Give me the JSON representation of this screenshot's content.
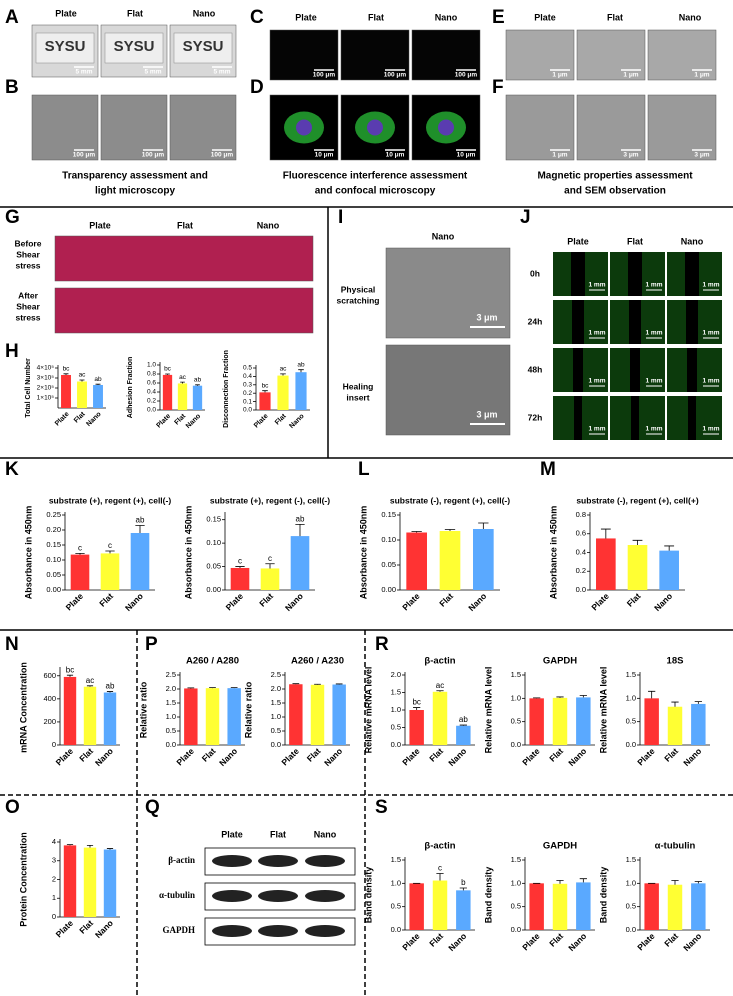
{
  "figure": {
    "panel_letters": [
      "A",
      "B",
      "C",
      "D",
      "E",
      "F",
      "G",
      "H",
      "I",
      "J",
      "K",
      "L",
      "M",
      "N",
      "O",
      "P",
      "Q",
      "R",
      "S"
    ],
    "group_labels": [
      "Plate",
      "Flat",
      "Nano"
    ],
    "a": {
      "sign": "SYSU",
      "scale": "5 mm"
    },
    "b": {
      "scale": "100 μm",
      "caption": [
        "Transparency  assessment and",
        "light microscopy"
      ]
    },
    "c": {
      "scale": "100 μm"
    },
    "d": {
      "scale": "10 μm",
      "caption": [
        "Fluorescence interference assessment",
        "and confocal microscopy"
      ]
    },
    "e": {
      "scale": "1 μm"
    },
    "f": {
      "scales": [
        "1 μm",
        "3 μm",
        "3 μm"
      ],
      "caption": [
        "Magnetic properties assessment",
        "and SEM observation"
      ]
    },
    "g": {
      "rows": [
        [
          "Before",
          "Shear",
          "stress"
        ],
        [
          "After",
          "Shear",
          "stress"
        ]
      ]
    },
    "i": {
      "rows": [
        [
          "Physical",
          "scratching"
        ],
        [
          "Healing",
          "insert"
        ]
      ],
      "scale": "3 μm"
    },
    "j": {
      "rows": [
        "0h",
        "24h",
        "48h",
        "72h"
      ],
      "scale": "1 mm"
    },
    "q": {
      "bands": [
        "β-actin",
        "α-tubulin",
        "GAPDH"
      ]
    }
  },
  "chart_data": [
    {
      "type": "bar",
      "y_label": "Total Cell Number",
      "categories": [
        "Plate",
        "Flat",
        "Nano"
      ],
      "values": [
        330000,
        265000,
        230000
      ],
      "errors": [
        12000,
        15000,
        8000
      ],
      "colors": [
        "#ff3333",
        "#ffff33",
        "#5aa9ff"
      ],
      "annotations": [
        "bc",
        "ac",
        "ab"
      ],
      "ylim": [
        0,
        400000
      ],
      "yticks": [
        {
          "value": 100000,
          "label": "1×10⁵"
        },
        {
          "value": 200000,
          "label": "2×10⁵"
        },
        {
          "value": 300000,
          "label": "3×10⁵"
        },
        {
          "value": 400000,
          "label": "4×10⁵"
        }
      ]
    },
    {
      "type": "bar",
      "y_label": "Adhesion Fraction",
      "categories": [
        "Plate",
        "Flat",
        "Nano"
      ],
      "values": [
        0.78,
        0.59,
        0.54
      ],
      "errors": [
        0.02,
        0.03,
        0.02
      ],
      "colors": [
        "#ff3333",
        "#ffff33",
        "#5aa9ff"
      ],
      "annotations": [
        "bc",
        "ac",
        "ab"
      ],
      "ylim": [
        0,
        1.0
      ],
      "yticks": [
        {
          "value": 0,
          "label": "0.0"
        },
        0.2,
        0.4,
        0.6,
        0.8,
        {
          "value": 1,
          "label": "1.0"
        }
      ]
    },
    {
      "type": "bar",
      "y_label": "Disconnection Fraction",
      "categories": [
        "Plate",
        "Flat",
        "Nano"
      ],
      "values": [
        0.21,
        0.41,
        0.45
      ],
      "errors": [
        0.02,
        0.02,
        0.03
      ],
      "colors": [
        "#ff3333",
        "#ffff33",
        "#5aa9ff"
      ],
      "annotations": [
        "bc",
        "ac",
        "ab"
      ],
      "ylim": [
        0,
        0.5
      ],
      "yticks": [
        {
          "value": 0,
          "label": "0.0"
        },
        0.1,
        0.2,
        0.3,
        0.4,
        0.5
      ]
    },
    {
      "type": "bar",
      "title": "substrate (+), regent (+), cell(-)",
      "y_label": "Absorbance in 450nm",
      "categories": [
        "Plate",
        "Flat",
        "Nano"
      ],
      "values": [
        0.118,
        0.122,
        0.19
      ],
      "errors": [
        0.004,
        0.008,
        0.025
      ],
      "colors": [
        "#ff3333",
        "#ffff33",
        "#5aa9ff"
      ],
      "annotations": [
        "c",
        "c",
        "ab"
      ],
      "ylim": [
        0,
        0.25
      ],
      "yticks": [
        {
          "value": 0,
          "label": "0.00"
        },
        0.05,
        {
          "value": 0.1,
          "label": "0.10"
        },
        0.15,
        {
          "value": 0.2,
          "label": "0.20"
        },
        0.25
      ]
    },
    {
      "type": "bar",
      "title": "substrate (+), regent (-), cell(-)",
      "y_label": "Absorbance in 450nm",
      "categories": [
        "Plate",
        "Flat",
        "Nano"
      ],
      "values": [
        0.047,
        0.046,
        0.115
      ],
      "errors": [
        0.003,
        0.01,
        0.025
      ],
      "colors": [
        "#ff3333",
        "#ffff33",
        "#5aa9ff"
      ],
      "annotations": [
        "c",
        "c",
        "ab"
      ],
      "ylim": [
        0,
        0.16
      ],
      "yticks": [
        {
          "value": 0,
          "label": "0.00"
        },
        0.05,
        {
          "value": 0.1,
          "label": "0.10"
        },
        0.15
      ]
    },
    {
      "type": "bar",
      "title": "substrate (-), regent (+), cell(-)",
      "y_label": "Absorbance in 450nm",
      "categories": [
        "Plate",
        "Flat",
        "Nano"
      ],
      "values": [
        0.115,
        0.118,
        0.122
      ],
      "errors": [
        0.002,
        0.003,
        0.012
      ],
      "colors": [
        "#ff3333",
        "#ffff33",
        "#5aa9ff"
      ],
      "ylim": [
        0,
        0.15
      ],
      "yticks": [
        {
          "value": 0,
          "label": "0.00"
        },
        0.05,
        {
          "value": 0.1,
          "label": "0.10"
        },
        0.15
      ]
    },
    {
      "type": "bar",
      "title": "substrate (-), regent (+), cell(+)",
      "y_label": "Absorbance in 450nm",
      "categories": [
        "Plate",
        "Flat",
        "Nano"
      ],
      "values": [
        0.55,
        0.48,
        0.42
      ],
      "errors": [
        0.1,
        0.05,
        0.05
      ],
      "colors": [
        "#ff3333",
        "#ffff33",
        "#5aa9ff"
      ],
      "ylim": [
        0,
        0.8
      ],
      "yticks": [
        {
          "value": 0,
          "label": "0.0"
        },
        0.2,
        0.4,
        0.6,
        0.8
      ]
    },
    {
      "type": "bar",
      "y_label": "mRNA Concentration",
      "categories": [
        "Plate",
        "Flat",
        "Nano"
      ],
      "values": [
        590,
        505,
        455
      ],
      "errors": [
        15,
        8,
        8
      ],
      "colors": [
        "#ff3333",
        "#ffff33",
        "#5aa9ff"
      ],
      "annotations": [
        "bc",
        "ac",
        "ab"
      ],
      "ylim": [
        0,
        650
      ],
      "yticks": [
        0,
        200,
        400,
        600
      ]
    },
    {
      "type": "bar",
      "title": "A260 / A280",
      "y_label": "Relative ratio",
      "categories": [
        "Plate",
        "Flat",
        "Nano"
      ],
      "values": [
        2.02,
        2.03,
        2.03
      ],
      "errors": [
        0.02,
        0.02,
        0.02
      ],
      "colors": [
        "#ff3333",
        "#ffff33",
        "#5aa9ff"
      ],
      "ylim": [
        0,
        2.5
      ],
      "yticks": [
        {
          "value": 0,
          "label": "0.0"
        },
        0.5,
        {
          "value": 1,
          "label": "1.0"
        },
        1.5,
        {
          "value": 2,
          "label": "2.0"
        },
        2.5
      ]
    },
    {
      "type": "bar",
      "title": "A260 / A230",
      "y_label": "Relative ratio",
      "categories": [
        "Plate",
        "Flat",
        "Nano"
      ],
      "values": [
        2.17,
        2.15,
        2.16
      ],
      "errors": [
        0.02,
        0.02,
        0.02
      ],
      "colors": [
        "#ff3333",
        "#ffff33",
        "#5aa9ff"
      ],
      "ylim": [
        0,
        2.5
      ],
      "yticks": [
        {
          "value": 0,
          "label": "0.0"
        },
        0.5,
        {
          "value": 1,
          "label": "1.0"
        },
        1.5,
        {
          "value": 2,
          "label": "2.0"
        },
        2.5
      ]
    },
    {
      "type": "bar",
      "title": "β-actin",
      "y_label": "Relative mRNA level",
      "categories": [
        "Plate",
        "Flat",
        "Nano"
      ],
      "values": [
        1.0,
        1.52,
        0.55
      ],
      "errors": [
        0.07,
        0.03,
        0.02
      ],
      "colors": [
        "#ff3333",
        "#ffff33",
        "#5aa9ff"
      ],
      "annotations": [
        "bc",
        "ac",
        "ab"
      ],
      "ylim": [
        0,
        2.0
      ],
      "yticks": [
        {
          "value": 0,
          "label": "0.0"
        },
        0.5,
        {
          "value": 1,
          "label": "1.0"
        },
        1.5,
        {
          "value": 2,
          "label": "2.0"
        }
      ]
    },
    {
      "type": "bar",
      "title": "GAPDH",
      "y_label": "Relative mRNA level",
      "categories": [
        "Plate",
        "Flat",
        "Nano"
      ],
      "values": [
        1.0,
        1.01,
        1.02
      ],
      "errors": [
        0.01,
        0.02,
        0.04
      ],
      "colors": [
        "#ff3333",
        "#ffff33",
        "#5aa9ff"
      ],
      "ylim": [
        0,
        1.5
      ],
      "yticks": [
        {
          "value": 0,
          "label": "0.0"
        },
        0.5,
        {
          "value": 1,
          "label": "1.0"
        },
        1.5
      ]
    },
    {
      "type": "bar",
      "title": "18S",
      "y_label": "Relative mRNA level",
      "categories": [
        "Plate",
        "Flat",
        "Nano"
      ],
      "values": [
        1.0,
        0.82,
        0.88
      ],
      "errors": [
        0.15,
        0.1,
        0.05
      ],
      "colors": [
        "#ff3333",
        "#ffff33",
        "#5aa9ff"
      ],
      "ylim": [
        0,
        1.5
      ],
      "yticks": [
        {
          "value": 0,
          "label": "0.0"
        },
        0.5,
        {
          "value": 1,
          "label": "1.0"
        },
        1.5
      ]
    },
    {
      "type": "bar",
      "y_label": "Protein Concentration",
      "categories": [
        "Plate",
        "Flat",
        "Nano"
      ],
      "values": [
        3.82,
        3.7,
        3.6
      ],
      "errors": [
        0.04,
        0.12,
        0.05
      ],
      "colors": [
        "#ff3333",
        "#ffff33",
        "#5aa9ff"
      ],
      "ylim": [
        0,
        4
      ],
      "yticks": [
        0,
        1,
        2,
        3,
        4
      ]
    },
    {
      "type": "bar",
      "title": "β-actin",
      "y_label": "Band density",
      "categories": [
        "Plate",
        "Flat",
        "Nano"
      ],
      "values": [
        1.0,
        1.06,
        0.85
      ],
      "errors": [
        0,
        0.15,
        0.05
      ],
      "colors": [
        "#ff3333",
        "#ffff33",
        "#5aa9ff"
      ],
      "annotations": [
        null,
        "c",
        "b"
      ],
      "ylim": [
        0,
        1.5
      ],
      "yticks": [
        {
          "value": 0,
          "label": "0.0"
        },
        0.5,
        {
          "value": 1,
          "label": "1.0"
        },
        1.5
      ]
    },
    {
      "type": "bar",
      "title": "GAPDH",
      "y_label": "Band density",
      "categories": [
        "Plate",
        "Flat",
        "Nano"
      ],
      "values": [
        1.0,
        0.99,
        1.02
      ],
      "errors": [
        0,
        0.07,
        0.08
      ],
      "colors": [
        "#ff3333",
        "#ffff33",
        "#5aa9ff"
      ],
      "ylim": [
        0,
        1.5
      ],
      "yticks": [
        {
          "value": 0,
          "label": "0.0"
        },
        0.5,
        {
          "value": 1,
          "label": "1.0"
        },
        1.5
      ]
    },
    {
      "type": "bar",
      "title": "α-tubulin",
      "y_label": "Band density",
      "categories": [
        "Plate",
        "Flat",
        "Nano"
      ],
      "values": [
        1.0,
        0.97,
        1.0
      ],
      "errors": [
        0,
        0.09,
        0.04
      ],
      "colors": [
        "#ff3333",
        "#ffff33",
        "#5aa9ff"
      ],
      "ylim": [
        0,
        1.5
      ],
      "yticks": [
        {
          "value": 0,
          "label": "0.0"
        },
        0.5,
        {
          "value": 1,
          "label": "1.0"
        },
        1.5
      ]
    }
  ]
}
